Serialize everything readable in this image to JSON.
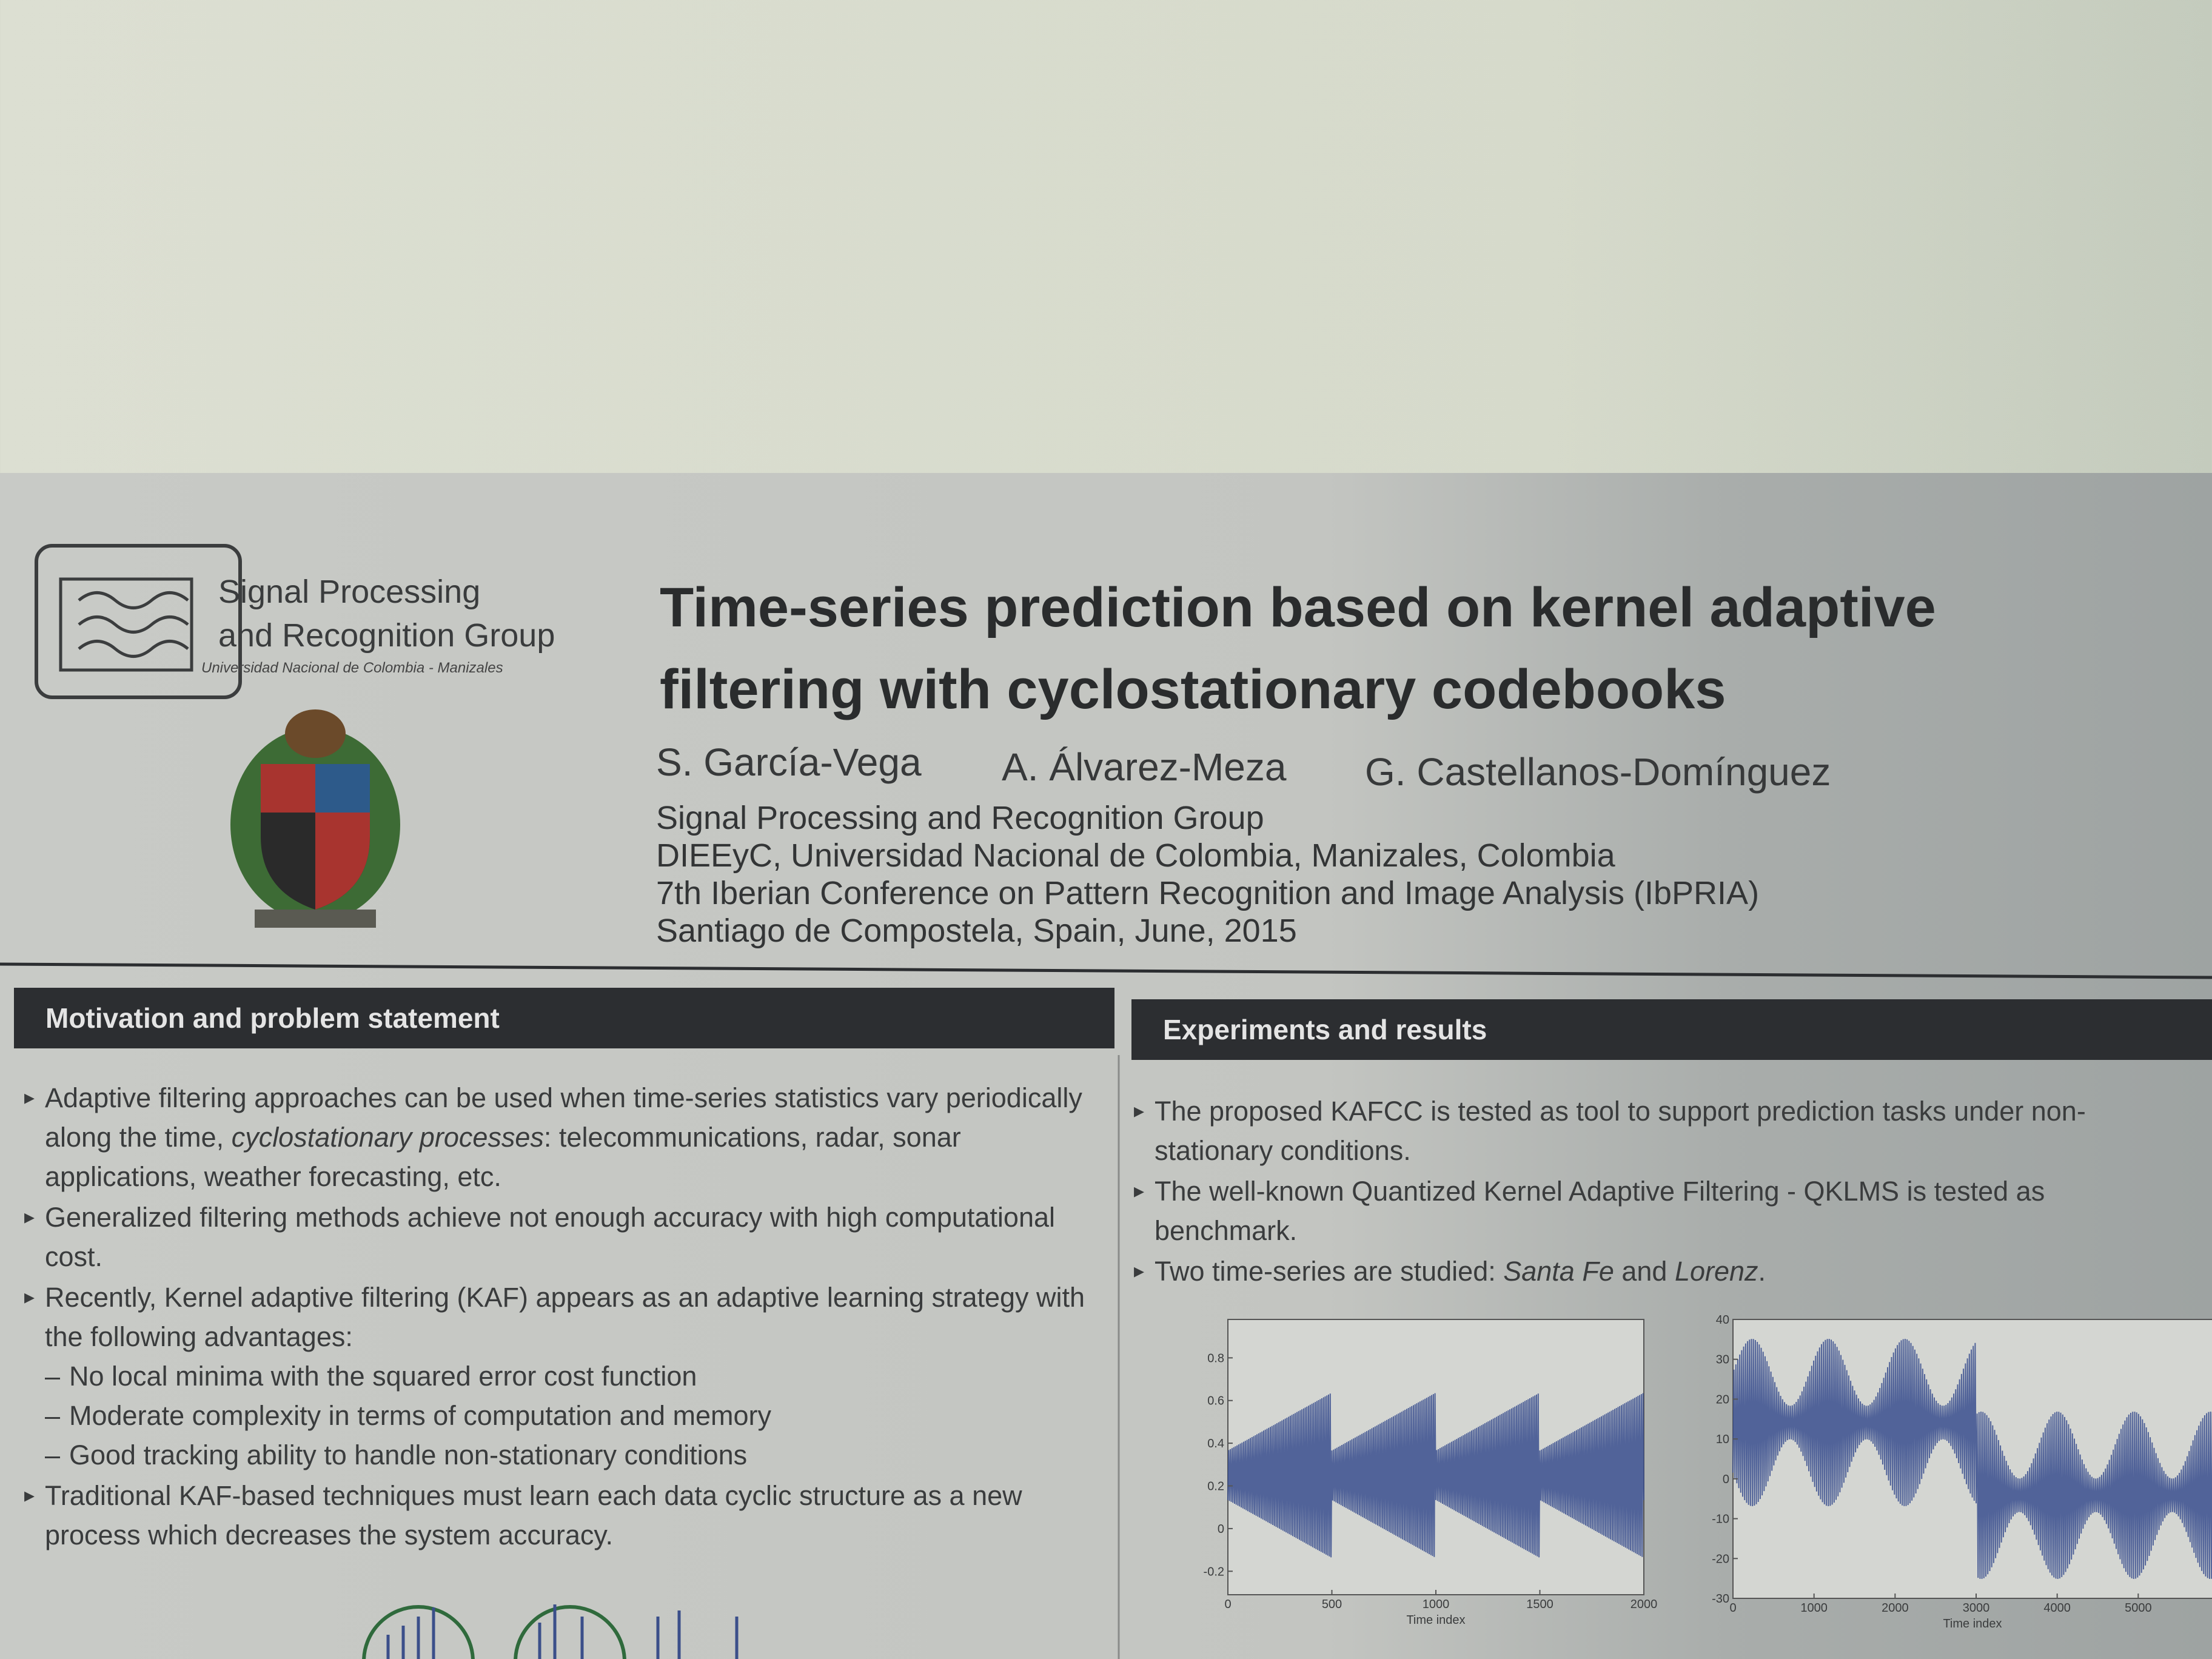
{
  "header": {
    "group": [
      "Signal Processing",
      "and Recognition Group"
    ],
    "university": "Universidad Nacional de Colombia - Manizales",
    "title": [
      "Time-series prediction based on kernel adaptive",
      "filtering with cyclostationary codebooks"
    ],
    "authors": [
      "S. García-Vega",
      "A. Álvarez-Meza",
      "G. Castellanos-Domínguez"
    ],
    "affiliation": [
      "Signal Processing and Recognition Group",
      "DIEEyC, Universidad Nacional de Colombia, Manizales, Colombia",
      "7th Iberian Conference on Pattern Recognition and Image Analysis (IbPRIA)",
      "Santiago de Compostela, Spain, June, 2015"
    ]
  },
  "sections": [
    {
      "heading": "Motivation and problem statement",
      "bullets": [
        {
          "text": [
            "Adaptive filtering approaches can be used when time-series statistics vary periodically along the time, ",
            {
              "t": "cyclostationary processes",
              "italic": true
            },
            ": telecommunications, radar, sonar applications, weather forecasting, etc."
          ]
        },
        {
          "text": [
            "Generalized filtering methods achieve not enough accuracy with high computational cost."
          ]
        },
        {
          "text": [
            "Recently, Kernel adaptive filtering (KAF) appears as an adaptive learning strategy with the following advantages:"
          ],
          "sub": [
            "No local minima with the squared error cost function",
            "Moderate complexity in terms of computation and memory",
            "Good tracking ability to handle non-stationary conditions"
          ]
        },
        {
          "text": [
            "Traditional KAF-based techniques must learn each data cyclic structure as a new process which decreases the system accuracy."
          ]
        }
      ]
    },
    {
      "heading": "Experiments and results",
      "bullets": [
        {
          "text": [
            "The proposed KAFCC is tested as tool to support prediction tasks under non-stationary conditions."
          ]
        },
        {
          "text": [
            "The well-known Quantized Kernel Adaptive Filtering - QKLMS is tested as benchmark."
          ]
        },
        {
          "text": [
            "Two time-series are studied: ",
            {
              "t": "Santa Fe",
              "italic": true
            },
            " and ",
            {
              "t": "Lorenz",
              "italic": true
            },
            "."
          ]
        }
      ]
    }
  ],
  "figures": [
    {
      "xlabel": "Time index",
      "xlim": [
        0,
        2000
      ],
      "ylim": [
        -0.31,
        0.98
      ],
      "xticks": [
        0,
        500,
        1000,
        1500,
        2000
      ],
      "yticks": [
        0.8,
        0.6,
        0.4,
        0.2,
        0,
        -0.2
      ]
    },
    {
      "xlabel": "Time index",
      "xlim": [
        0,
        6000
      ],
      "ylim": [
        -30,
        40
      ],
      "xticks": [
        0,
        1000,
        2000,
        3000,
        4000,
        5000
      ],
      "yticks": [
        40,
        30,
        20,
        10,
        0,
        -10,
        -20,
        -30
      ]
    }
  ]
}
